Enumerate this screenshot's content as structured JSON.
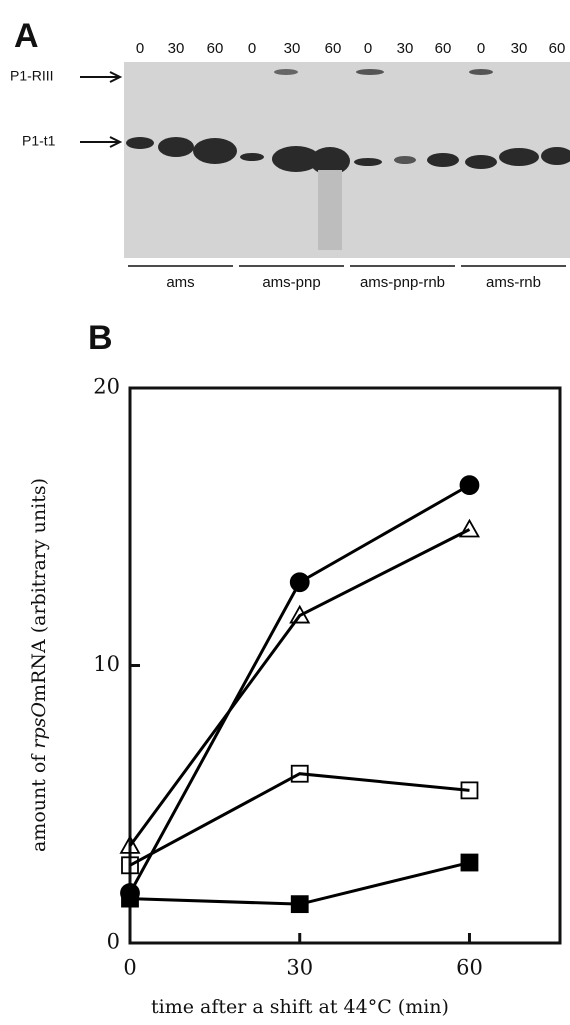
{
  "panel_a": {
    "label": "A",
    "lane_labels": [
      "0",
      "30",
      "60",
      "0",
      "30",
      "60",
      "0",
      "30",
      "60",
      "0",
      "30",
      "60"
    ],
    "band_labels": [
      "P1-RIII",
      "P1-t1"
    ],
    "groups": [
      "ams",
      "ams-pnp",
      "ams-pnp-rnb",
      "ams-rnb"
    ]
  },
  "chart_data": {
    "type": "line",
    "label": "B",
    "xlabel": "time after a shift at 44°C (min)",
    "ylabel": [
      "amount of ",
      "rpsO",
      "mRNA (arbitrary units)"
    ],
    "x": [
      0,
      30,
      60
    ],
    "xlim": [
      0,
      76
    ],
    "xticks": [
      0,
      30,
      60
    ],
    "ylim": [
      0,
      20
    ],
    "yticks": [
      0,
      10,
      20
    ],
    "series": [
      {
        "marker": "circle",
        "fill": "#000000",
        "color": "#000000",
        "values": [
          1.8,
          13.0,
          16.5
        ]
      },
      {
        "marker": "triangle",
        "fill": "none",
        "color": "#000000",
        "values": [
          3.5,
          11.8,
          14.9
        ]
      },
      {
        "marker": "square",
        "fill": "none",
        "color": "#000000",
        "values": [
          2.8,
          6.1,
          5.5
        ]
      },
      {
        "marker": "square",
        "fill": "#000000",
        "color": "#000000",
        "values": [
          1.6,
          1.4,
          2.9
        ]
      }
    ]
  }
}
